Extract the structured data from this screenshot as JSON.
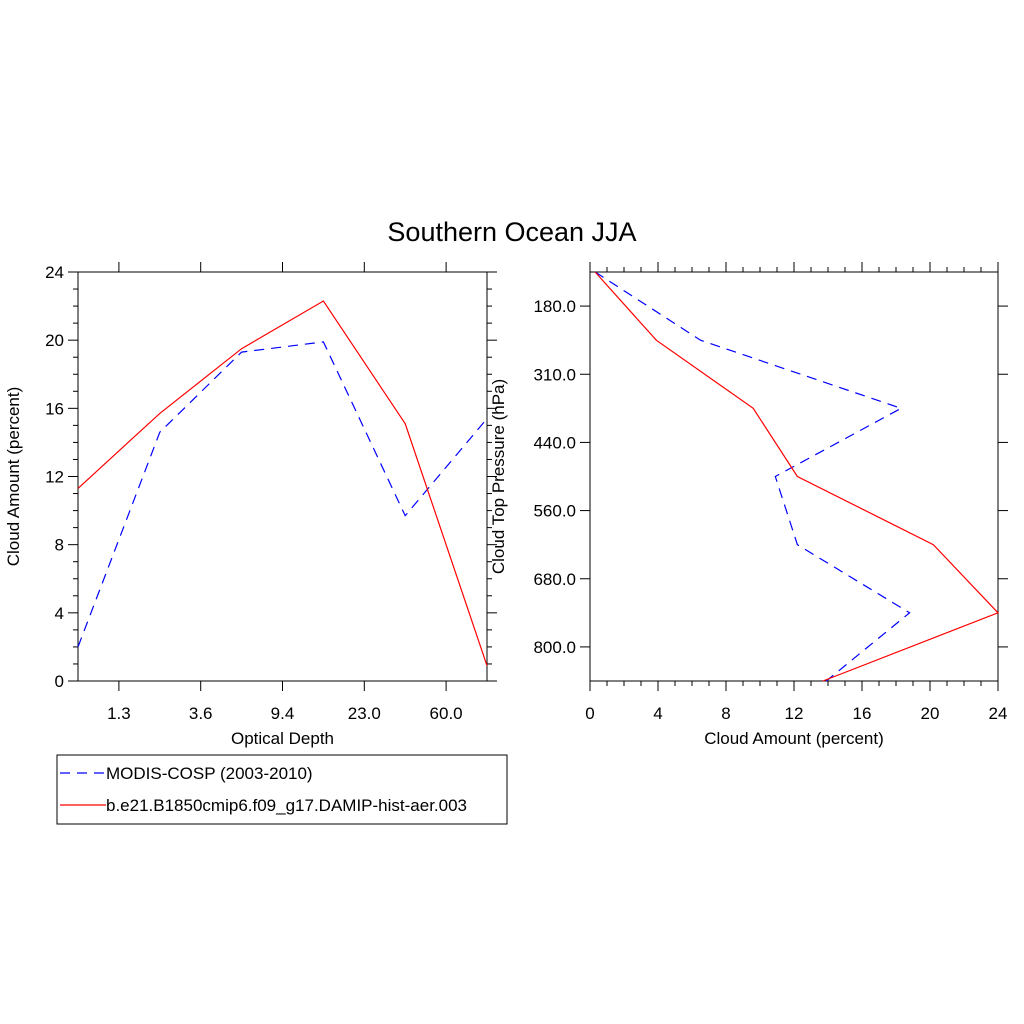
{
  "title": "Southern Ocean JJA",
  "chart_data": [
    {
      "type": "line",
      "xlabel": "Optical Depth",
      "ylabel": "Cloud Amount (percent)",
      "x_bins": 7,
      "x_tick_positions": [
        0.5,
        1.5,
        2.5,
        3.5,
        4.5
      ],
      "x_tick_labels": [
        "1.3",
        "3.6",
        "9.4",
        "23.0",
        "60.0"
      ],
      "ylim": [
        0,
        24
      ],
      "yticks": [
        0,
        4,
        8,
        12,
        16,
        20,
        24
      ],
      "x": [
        0,
        1,
        2,
        3,
        4,
        5
      ],
      "series": [
        {
          "name": "MODIS-COSP (2003-2010)",
          "color": "#0000ff",
          "dash": true,
          "values": [
            2.0,
            14.6,
            19.3,
            19.9,
            9.7,
            15.4
          ]
        },
        {
          "name": "b.e21.B1850cmip6.f09_g17.DAMIP-hist-aer.003",
          "color": "#ff0000",
          "dash": false,
          "values": [
            11.3,
            15.7,
            19.5,
            22.3,
            15.1,
            0.9
          ]
        }
      ]
    },
    {
      "type": "line",
      "xlabel": "Cloud Amount (percent)",
      "ylabel": "Cloud Top Pressure (hPa)",
      "xlim": [
        0,
        24
      ],
      "xticks": [
        0,
        4,
        8,
        12,
        16,
        20,
        24
      ],
      "y_bins": 6,
      "y_tick_positions": [
        0.5,
        1.5,
        2.5,
        3.5,
        4.5,
        5.5
      ],
      "y_tick_labels": [
        "180.0",
        "310.0",
        "440.0",
        "560.0",
        "680.0",
        "800.0"
      ],
      "y": [
        0,
        1,
        2,
        3,
        4,
        5,
        6
      ],
      "series": [
        {
          "name": "MODIS-COSP (2003-2010)",
          "color": "#0000ff",
          "dash": true,
          "values": [
            0.3,
            6.5,
            18.3,
            10.9,
            12.2,
            18.8,
            13.9
          ]
        },
        {
          "name": "b.e21.B1850cmip6.f09_g17.DAMIP-hist-aer.003",
          "color": "#ff0000",
          "dash": false,
          "values": [
            0.3,
            3.9,
            9.6,
            12.2,
            20.2,
            24.0,
            13.7
          ]
        }
      ]
    }
  ],
  "legend": {
    "items": [
      {
        "label": "MODIS-COSP (2003-2010)",
        "color": "#0000ff",
        "dash": true
      },
      {
        "label": "b.e21.B1850cmip6.f09_g17.DAMIP-hist-aer.003",
        "color": "#ff0000",
        "dash": false
      }
    ]
  }
}
